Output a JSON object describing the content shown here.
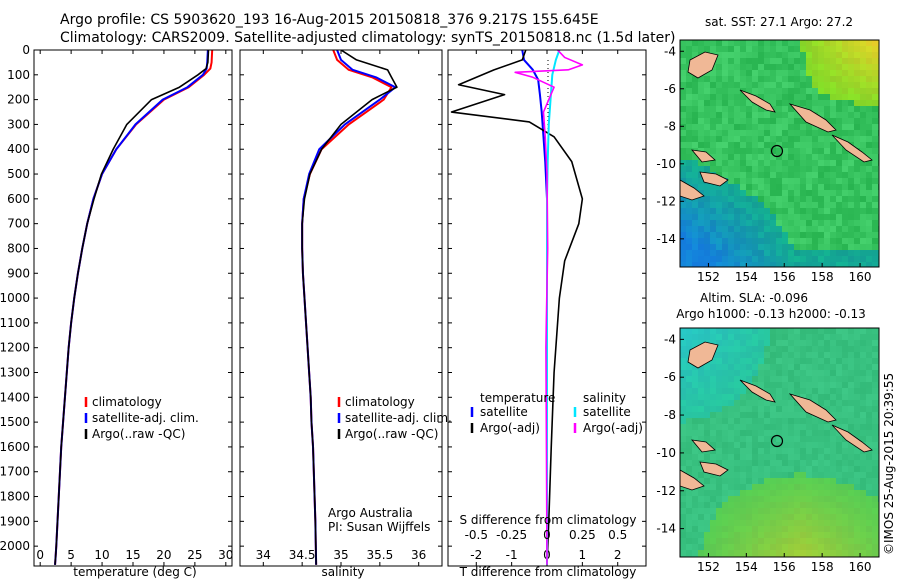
{
  "header": {
    "line1": "Argo profile: CS 5903620_193 16-Aug-2015 20150818_376 9.217S 155.645E",
    "line2": "Climatology: CARS2009. Satellite-adjusted climatology: synTS_20150818.nc (1.5d later)"
  },
  "colors": {
    "climatology": "#ff0000",
    "satellite": "#0000ff",
    "argo": "#000000",
    "sat_sal": "#00e6ff",
    "argo_sal": "#ff00ff",
    "land": "#f0b896"
  },
  "panels": {
    "temperature": {
      "xlabel": "temperature (deg C)",
      "legend": [
        "climatology",
        "satellite-adj. clim.",
        "Argo(..raw -QC)"
      ]
    },
    "salinity": {
      "xlabel": "salinity",
      "legend": [
        "climatology",
        "satellite-adj. clim.",
        "Argo(..raw -QC)"
      ],
      "credit1": "Argo Australia",
      "credit2": "PI: Susan Wijffels"
    },
    "difference": {
      "top_label": "S difference from climatology",
      "xlabel": "T difference from climatology",
      "legend_left_title": "temperature",
      "legend_right_title": "salinity",
      "legend_left": [
        "satellite",
        "Argo(-adj)"
      ],
      "legend_right": [
        "satellite",
        "Argo(-adj)"
      ]
    }
  },
  "maps": {
    "sst_title": "sat. SST: 27.1  Argo: 27.2",
    "sla_title1": "Altim. SLA: -0.096",
    "sla_title2": "Argo h1000: -0.13 h2000: -0.13",
    "x_ticks": [
      "152",
      "154",
      "156",
      "158",
      "160"
    ],
    "y_ticks": [
      "-4",
      "-6",
      "-8",
      "-10",
      "-12",
      "-14"
    ]
  },
  "watermark": "©IMOS 25-Aug-2015 20:39:55",
  "chart_data": [
    {
      "type": "line",
      "title": "",
      "xlabel": "temperature (deg C)",
      "ylabel": "",
      "xlim": [
        -1,
        31
      ],
      "ylim": [
        2080,
        0
      ],
      "x_ticks": [
        0,
        5,
        10,
        15,
        20,
        25,
        30
      ],
      "y_ticks": [
        0,
        100,
        200,
        300,
        400,
        500,
        600,
        700,
        800,
        900,
        1000,
        1100,
        1200,
        1300,
        1400,
        1500,
        1600,
        1700,
        1800,
        1900,
        2000
      ],
      "series": [
        {
          "name": "climatology",
          "color": "#ff0000",
          "x": [
            27.8,
            27.7,
            27.5,
            26.5,
            24.0,
            20.0,
            15.5,
            12.3,
            10.0,
            8.6,
            7.6,
            6.8,
            6.1,
            5.5,
            5.0,
            4.6,
            4.3,
            4.0,
            3.7,
            3.4,
            3.2,
            3.0,
            2.8,
            2.6,
            2.5,
            2.4
          ],
          "y": [
            0,
            50,
            75,
            100,
            150,
            200,
            300,
            400,
            500,
            600,
            700,
            800,
            900,
            1000,
            1100,
            1200,
            1300,
            1400,
            1500,
            1600,
            1700,
            1800,
            1900,
            2000,
            2040,
            2075
          ]
        },
        {
          "name": "satellite-adj. clim.",
          "color": "#0000ff",
          "x": [
            27.1,
            27.0,
            26.9,
            26.3,
            23.8,
            19.8,
            15.4,
            12.3,
            10.0,
            8.6,
            7.6,
            6.8,
            6.1,
            5.5,
            5.0,
            4.6,
            4.3,
            4.0,
            3.7,
            3.4,
            3.2,
            3.0,
            2.8,
            2.6,
            2.5,
            2.4
          ],
          "y": [
            0,
            50,
            75,
            100,
            150,
            200,
            300,
            400,
            500,
            600,
            700,
            800,
            900,
            1000,
            1100,
            1200,
            1300,
            1400,
            1500,
            1600,
            1700,
            1800,
            1900,
            2000,
            2040,
            2075
          ]
        },
        {
          "name": "Argo(..raw -QC)",
          "color": "#000000",
          "x": [
            27.2,
            27.1,
            26.8,
            25.5,
            22.5,
            18.0,
            14.0,
            11.8,
            9.9,
            8.7,
            7.6,
            6.8,
            6.1,
            5.5,
            5.0,
            4.6,
            4.3,
            4.0,
            3.7,
            3.4,
            3.2,
            3.0,
            2.8,
            2.6,
            2.5,
            2.4
          ],
          "y": [
            0,
            50,
            75,
            100,
            150,
            200,
            300,
            400,
            500,
            600,
            700,
            800,
            900,
            1000,
            1100,
            1200,
            1300,
            1400,
            1500,
            1600,
            1700,
            1800,
            1900,
            2000,
            2040,
            2075
          ]
        }
      ]
    },
    {
      "type": "line",
      "title": "",
      "xlabel": "salinity",
      "ylabel": "",
      "xlim": [
        33.7,
        36.3
      ],
      "ylim": [
        2080,
        0
      ],
      "x_ticks": [
        34,
        34.5,
        35,
        35.5,
        36
      ],
      "series": [
        {
          "name": "climatology",
          "color": "#ff0000",
          "x": [
            34.9,
            34.95,
            35.1,
            35.4,
            35.65,
            35.55,
            35.1,
            34.75,
            34.6,
            34.52,
            34.5,
            34.5,
            34.51,
            34.53,
            34.55,
            34.57,
            34.59,
            34.61,
            34.62,
            34.64,
            34.65,
            34.66,
            34.67,
            34.68
          ],
          "y": [
            0,
            40,
            80,
            110,
            150,
            200,
            300,
            400,
            500,
            600,
            700,
            800,
            900,
            1000,
            1100,
            1200,
            1300,
            1400,
            1500,
            1600,
            1700,
            1800,
            1900,
            2075
          ]
        },
        {
          "name": "satellite-adj. clim.",
          "color": "#0000ff",
          "x": [
            34.95,
            35.0,
            35.15,
            35.45,
            35.7,
            35.5,
            35.05,
            34.72,
            34.59,
            34.52,
            34.5,
            34.5,
            34.51,
            34.53,
            34.55,
            34.57,
            34.59,
            34.61,
            34.62,
            34.64,
            34.65,
            34.66,
            34.67,
            34.68
          ],
          "y": [
            0,
            40,
            80,
            110,
            150,
            200,
            300,
            400,
            500,
            600,
            700,
            800,
            900,
            1000,
            1100,
            1200,
            1300,
            1400,
            1500,
            1600,
            1700,
            1800,
            1900,
            2075
          ]
        },
        {
          "name": "Argo(..raw -QC)",
          "color": "#000000",
          "x": [
            35.0,
            35.2,
            35.6,
            35.65,
            35.72,
            35.4,
            35.0,
            34.75,
            34.6,
            34.53,
            34.5,
            34.5,
            34.51,
            34.53,
            34.55,
            34.57,
            34.59,
            34.61,
            34.62,
            34.64,
            34.65,
            34.66,
            34.67,
            34.68
          ],
          "y": [
            0,
            40,
            80,
            110,
            150,
            200,
            300,
            400,
            500,
            600,
            700,
            800,
            900,
            1000,
            1100,
            1200,
            1300,
            1400,
            1500,
            1600,
            1700,
            1800,
            1900,
            2075
          ]
        }
      ]
    },
    {
      "type": "line",
      "title": "",
      "xlabel": "T difference from climatology",
      "ylabel": "",
      "xlim": [
        -2.8,
        2.8
      ],
      "ylim": [
        2080,
        0
      ],
      "x_ticks": [
        -2,
        -1,
        0,
        1,
        2
      ],
      "x2_label": "S difference from climatology",
      "x2_ticks": [
        -0.5,
        -0.25,
        0,
        0.25,
        0.5
      ],
      "series": [
        {
          "name": "satellite",
          "quantity": "temperature",
          "color": "#0000ff",
          "x": [
            -0.7,
            -0.65,
            -0.4,
            -0.25,
            -0.2,
            -0.15,
            -0.1,
            -0.05,
            0,
            0,
            0,
            0
          ],
          "y": [
            0,
            40,
            80,
            120,
            180,
            250,
            350,
            450,
            600,
            800,
            1200,
            2075
          ]
        },
        {
          "name": "Argo(-adj)",
          "quantity": "temperature",
          "color": "#000000",
          "x": [
            -0.6,
            -0.7,
            -1.5,
            -2.5,
            -1.2,
            -2.7,
            -0.5,
            0.2,
            0.7,
            1.0,
            0.9,
            0.5,
            0.35,
            0.2,
            0.12,
            0.05,
            0
          ],
          "y": [
            0,
            40,
            80,
            140,
            180,
            250,
            290,
            350,
            450,
            600,
            700,
            850,
            1000,
            1300,
            1600,
            1900,
            2075
          ]
        },
        {
          "name": "satellite",
          "quantity": "salinity",
          "color": "#00e6ff",
          "x": [
            0.35,
            0.25,
            0.15,
            0.1,
            0.05,
            0.02,
            0,
            0
          ],
          "y": [
            0,
            40,
            100,
            200,
            300,
            450,
            600,
            2075
          ]
        },
        {
          "name": "Argo(-adj)",
          "quantity": "salinity",
          "color": "#ff00ff",
          "x": [
            0.3,
            0.5,
            1.0,
            0.6,
            -0.9,
            -0.4,
            0.2,
            -0.1,
            -0.05,
            0,
            0.02,
            -0.02,
            -0.03,
            0
          ],
          "y": [
            0,
            30,
            60,
            80,
            90,
            110,
            150,
            250,
            350,
            500,
            800,
            1100,
            1200,
            2075
          ]
        }
      ]
    }
  ]
}
